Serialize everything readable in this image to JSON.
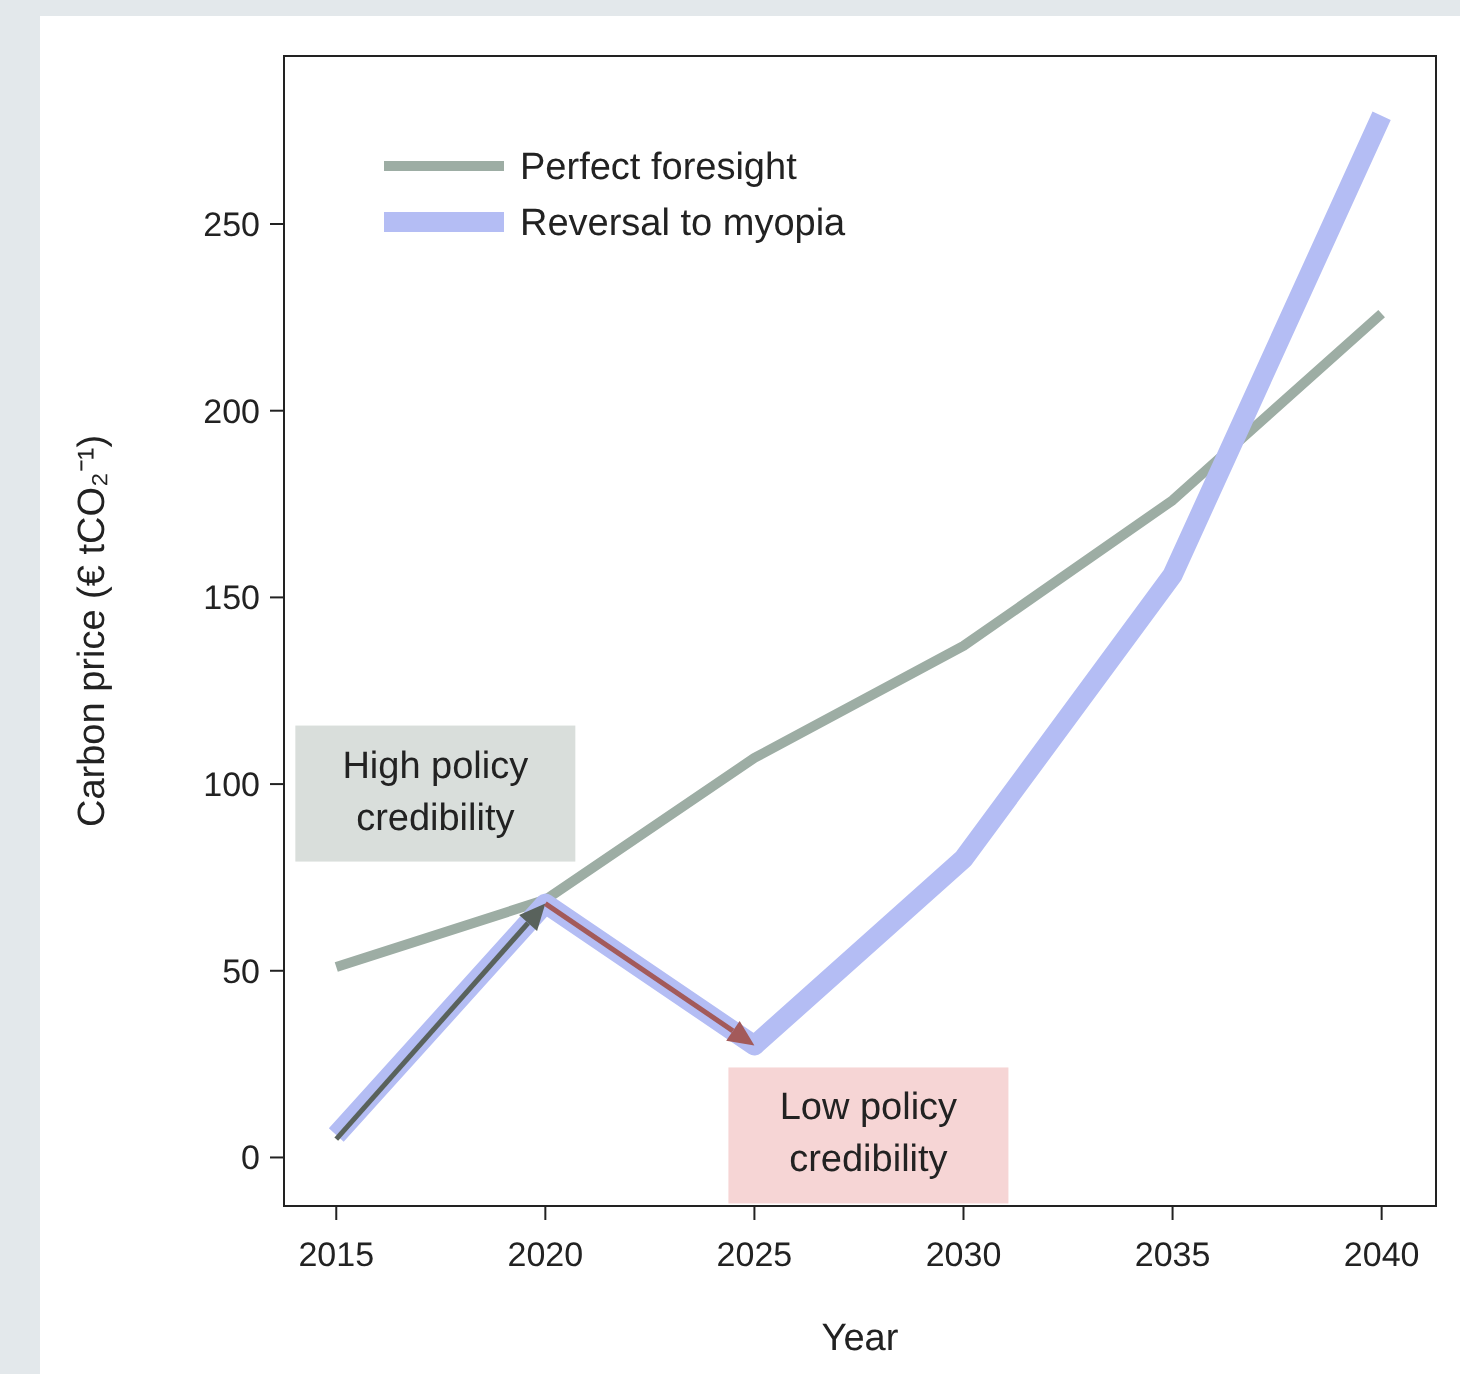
{
  "chart_data": {
    "type": "line",
    "xlabel": "Year",
    "ylabel": "Carbon price (€ tCO₂⁻¹)",
    "x": [
      2015,
      2020,
      2025,
      2030,
      2035,
      2040
    ],
    "series": [
      {
        "name": "Perfect foresight",
        "color": "#9dada4",
        "values": [
          51,
          69,
          107,
          137,
          176,
          226
        ]
      },
      {
        "name": "Reversal to myopia",
        "color": "#b4bdf4",
        "values": [
          6,
          68,
          30,
          80,
          156,
          279
        ]
      }
    ],
    "xlim": [
      2013.75,
      2041.3
    ],
    "xticks": [
      2015,
      2020,
      2025,
      2030,
      2035,
      2040
    ],
    "ylim": [
      -13,
      295
    ],
    "yticks": [
      0,
      50,
      100,
      150,
      200,
      250
    ],
    "legend": "top left",
    "grid": false,
    "line_style": "solid",
    "annotations": [
      "High policy credibility",
      "Low policy credibility"
    ]
  }
}
